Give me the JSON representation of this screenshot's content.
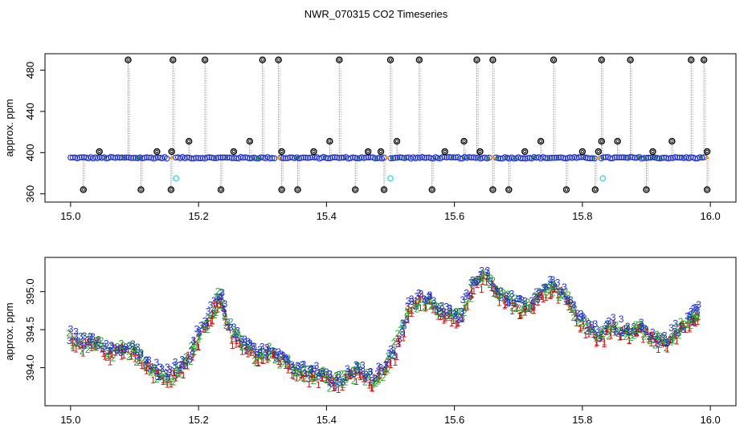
{
  "figure": {
    "title": "NWR_070315  CO2 Timeseries"
  },
  "colors": {
    "frame": "#000000",
    "blue": "#1f2fd0",
    "red": "#cc1111",
    "green": "#22aa22",
    "cyan": "#33dddd",
    "grey": "#888888",
    "orange": "#ff9900"
  },
  "chart_data": [
    {
      "type": "scatter",
      "title": "NWR_070315  CO2 Timeseries",
      "xlabel": "",
      "ylabel": "approx. ppm",
      "xlim": [
        14.96,
        16.04
      ],
      "ylim": [
        352,
        496
      ],
      "x_ticks": [
        15.0,
        15.2,
        15.4,
        15.6,
        15.8,
        16.0
      ],
      "x_tick_labels": [
        "15.0",
        "15.2",
        "15.4",
        "15.6",
        "15.8",
        "16.0"
      ],
      "y_ticks": [
        360,
        400,
        440,
        480
      ],
      "y_tick_labels": [
        "360",
        "400",
        "440",
        "480"
      ],
      "baseline": 394.5,
      "series": [
        {
          "name": "high outliers (black circles)",
          "marker": "open-circle",
          "color": "#000000",
          "x": [
            15.09,
            15.16,
            15.21,
            15.3,
            15.325,
            15.42,
            15.5,
            15.545,
            15.635,
            15.66,
            15.755,
            15.83,
            15.875,
            15.97,
            15.99
          ],
          "y": [
            490,
            490,
            490,
            490,
            490,
            490,
            490,
            490,
            490,
            490,
            490,
            490,
            490,
            490,
            490
          ]
        },
        {
          "name": "mid outliers (black circles)",
          "marker": "open-circle",
          "color": "#000000",
          "x": [
            15.045,
            15.135,
            15.158,
            15.185,
            15.255,
            15.28,
            15.33,
            15.38,
            15.405,
            15.465,
            15.485,
            15.51,
            15.585,
            15.615,
            15.64,
            15.71,
            15.735,
            15.8,
            15.825,
            15.83,
            15.855,
            15.91,
            15.94,
            15.995
          ],
          "y": [
            401,
            401,
            401,
            411,
            401,
            411,
            401,
            401,
            411,
            401,
            401,
            411,
            401,
            411,
            401,
            401,
            411,
            401,
            401,
            411,
            411,
            401,
            411,
            401
          ]
        },
        {
          "name": "low outliers (black circles)",
          "marker": "open-circle",
          "color": "#000000",
          "x": [
            15.02,
            15.11,
            15.157,
            15.235,
            15.33,
            15.355,
            15.445,
            15.49,
            15.565,
            15.66,
            15.685,
            15.775,
            15.82,
            15.9,
            15.995
          ],
          "y": [
            364,
            364,
            364,
            364,
            364,
            364,
            364,
            364,
            364,
            364,
            364,
            364,
            364,
            364,
            364
          ]
        },
        {
          "name": "flagged (cyan circles)",
          "marker": "open-circle",
          "color": "#33dddd",
          "x": [
            15.165,
            15.5,
            15.832
          ],
          "y": [
            375,
            375,
            375
          ]
        },
        {
          "name": "main record (blue circles)",
          "marker": "open-circle",
          "color": "#1f2fd0",
          "x_range": [
            15.0,
            15.995
          ],
          "y_approx": 395,
          "gaps_at": [
            15.158,
            15.325,
            15.495,
            15.66,
            15.825,
            15.995
          ]
        }
      ]
    },
    {
      "type": "scatter",
      "title": "",
      "xlabel": "",
      "ylabel": "approx. ppm",
      "xlim": [
        14.96,
        16.04
      ],
      "ylim": [
        393.5,
        395.45
      ],
      "x_ticks": [
        15.0,
        15.2,
        15.4,
        15.6,
        15.8,
        16.0
      ],
      "x_tick_labels": [
        "15.0",
        "15.2",
        "15.4",
        "15.6",
        "15.8",
        "16.0"
      ],
      "y_ticks": [
        394.0,
        394.5,
        395.0
      ],
      "y_tick_labels": [
        "394.0",
        "394.5",
        "395.0"
      ],
      "marker_labels": [
        "1",
        "2",
        "3"
      ],
      "series": [
        {
          "name": "CO2 (digit-coded by sample line)",
          "marker": "digit",
          "x": [
            15.0,
            15.02,
            15.04,
            15.06,
            15.08,
            15.1,
            15.12,
            15.14,
            15.16,
            15.18,
            15.2,
            15.22,
            15.235,
            15.25,
            15.27,
            15.29,
            15.31,
            15.33,
            15.35,
            15.37,
            15.39,
            15.41,
            15.43,
            15.45,
            15.47,
            15.49,
            15.51,
            15.53,
            15.55,
            15.57,
            15.59,
            15.61,
            15.63,
            15.65,
            15.67,
            15.69,
            15.71,
            15.73,
            15.75,
            15.77,
            15.79,
            15.81,
            15.83,
            15.85,
            15.87,
            15.89,
            15.91,
            15.93,
            15.95,
            15.97,
            15.98
          ],
          "y": [
            394.4,
            394.3,
            394.35,
            394.2,
            394.25,
            394.2,
            394.05,
            393.9,
            393.9,
            394.05,
            394.4,
            394.7,
            394.95,
            394.45,
            394.3,
            394.15,
            394.2,
            394.1,
            394.0,
            393.9,
            393.9,
            393.8,
            393.85,
            393.95,
            393.85,
            393.95,
            394.3,
            394.75,
            394.9,
            394.8,
            394.7,
            394.65,
            395.1,
            395.2,
            394.95,
            394.85,
            394.75,
            394.9,
            395.1,
            394.95,
            394.7,
            394.5,
            394.4,
            394.55,
            394.45,
            394.5,
            394.4,
            394.3,
            394.5,
            394.6,
            394.75
          ]
        }
      ]
    }
  ]
}
